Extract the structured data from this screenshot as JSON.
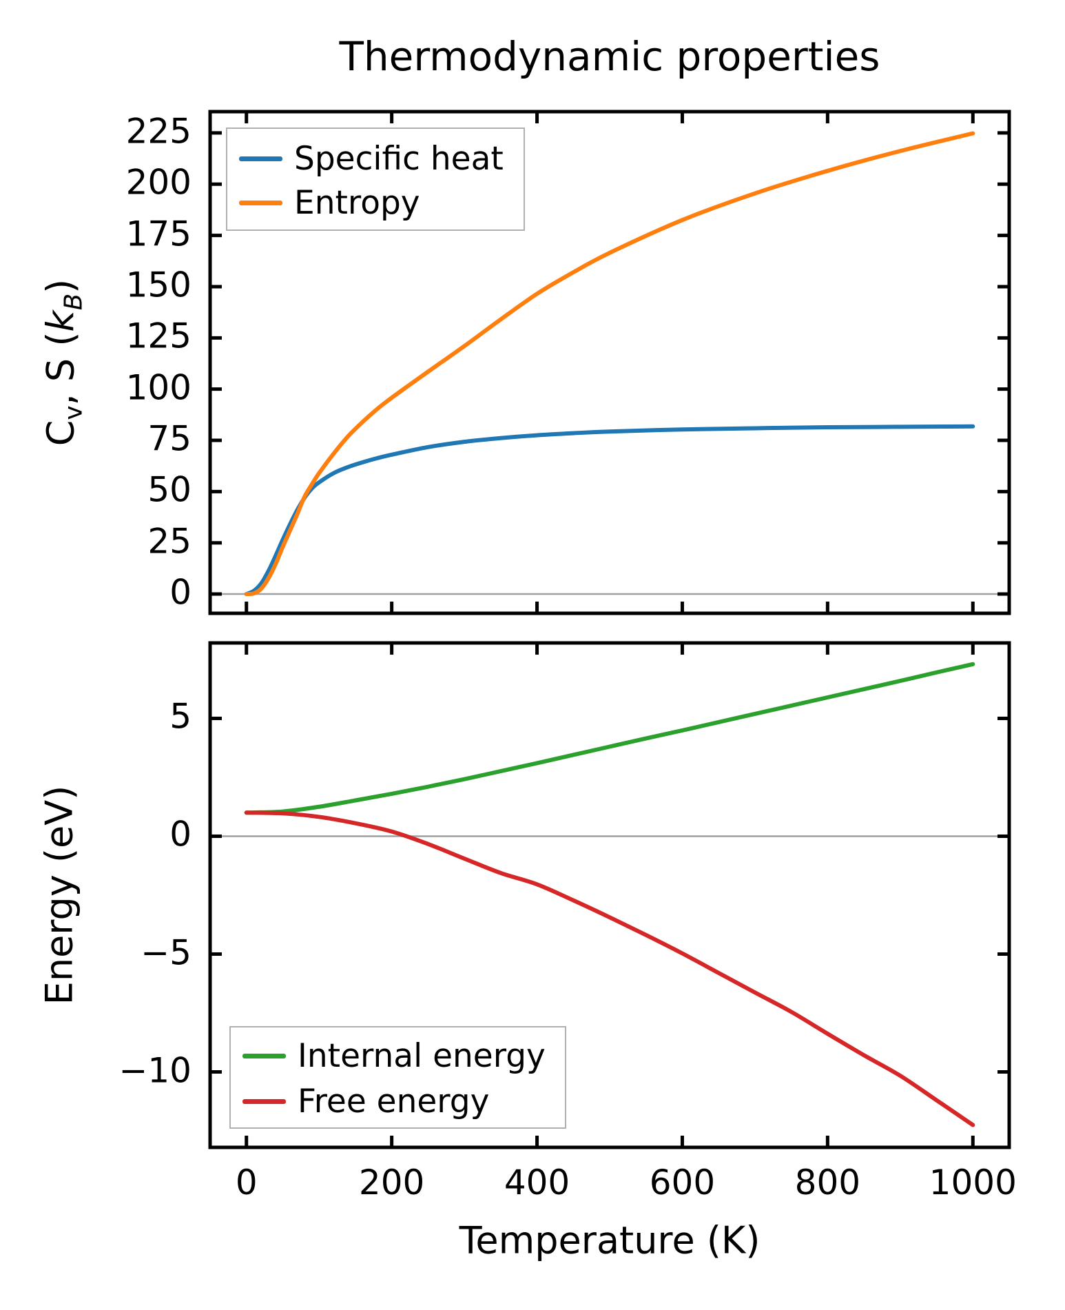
{
  "figure_title": "Thermodynamic properties",
  "chart_data": [
    {
      "type": "line",
      "title": "Thermodynamic properties",
      "xlabel": "Temperature (K)",
      "ylabel": "Cv, S (kB)",
      "ylabel_parts": {
        "pre": "C",
        "presub": "v",
        "mid": ", S (",
        "k": "k",
        "ksub": "B",
        "post": ")"
      },
      "xlim": [
        -50,
        1050
      ],
      "ylim": [
        -9.4,
        235.4
      ],
      "xticks": [
        0,
        200,
        400,
        600,
        800,
        1000
      ],
      "yticks": [
        0,
        25,
        50,
        75,
        100,
        125,
        150,
        175,
        200,
        225
      ],
      "zero_line": 0,
      "grid": false,
      "legend_position": "upper left",
      "x": [
        0,
        10,
        20,
        30,
        40,
        50,
        60,
        70,
        80,
        90,
        100,
        120,
        140,
        160,
        180,
        200,
        250,
        300,
        350,
        400,
        450,
        500,
        600,
        700,
        800,
        900,
        1000
      ],
      "series": [
        {
          "name": "Specific heat",
          "color": "#1f77b4",
          "values": [
            0,
            1.5,
            5,
            11,
            18.5,
            26.5,
            34,
            41,
            47,
            51.5,
            54.5,
            59,
            62,
            64.3,
            66.3,
            68,
            71.7,
            74.3,
            76.1,
            77.5,
            78.5,
            79.3,
            80.3,
            80.9,
            81.4,
            81.6,
            81.8
          ]
        },
        {
          "name": "Entropy",
          "color": "#ff7f0e",
          "values": [
            0,
            0.3,
            2.5,
            7.5,
            14.5,
            23,
            31,
            39,
            47.5,
            53.5,
            59,
            68.5,
            77,
            84,
            90.3,
            95.8,
            108.5,
            121,
            134,
            146.5,
            157,
            166.5,
            182.5,
            195.5,
            206.5,
            216.2,
            224.8
          ]
        }
      ]
    },
    {
      "type": "line",
      "title": "",
      "xlabel": "Temperature (K)",
      "ylabel": "Energy (eV)",
      "xlim": [
        -50,
        1050
      ],
      "ylim": [
        -13.2,
        8.2
      ],
      "xticks": [
        0,
        200,
        400,
        600,
        800,
        1000
      ],
      "yticks": [
        5,
        0,
        -5,
        -10
      ],
      "zero_line": 0,
      "grid": false,
      "legend_position": "lower left",
      "x": [
        0,
        50,
        100,
        150,
        200,
        250,
        300,
        350,
        400,
        450,
        500,
        550,
        600,
        650,
        700,
        750,
        800,
        850,
        900,
        950,
        1000
      ],
      "series": [
        {
          "name": "Internal energy",
          "color": "#2ca02c",
          "values": [
            1.0,
            1.05,
            1.25,
            1.52,
            1.8,
            2.1,
            2.42,
            2.76,
            3.1,
            3.45,
            3.8,
            4.15,
            4.49,
            4.84,
            5.19,
            5.54,
            5.89,
            6.24,
            6.59,
            6.95,
            7.3
          ]
        },
        {
          "name": "Free energy",
          "color": "#d62728",
          "values": [
            1.0,
            0.97,
            0.82,
            0.55,
            0.2,
            -0.33,
            -0.95,
            -1.56,
            -2.04,
            -2.72,
            -3.44,
            -4.19,
            -4.97,
            -5.8,
            -6.63,
            -7.45,
            -8.38,
            -9.29,
            -10.16,
            -11.2,
            -12.25
          ]
        }
      ]
    }
  ],
  "style": {
    "spine_color": "#000000",
    "zero_line_color": "#a0a0a0",
    "legend_border_color": "#b0b0b0",
    "background": "#ffffff"
  }
}
